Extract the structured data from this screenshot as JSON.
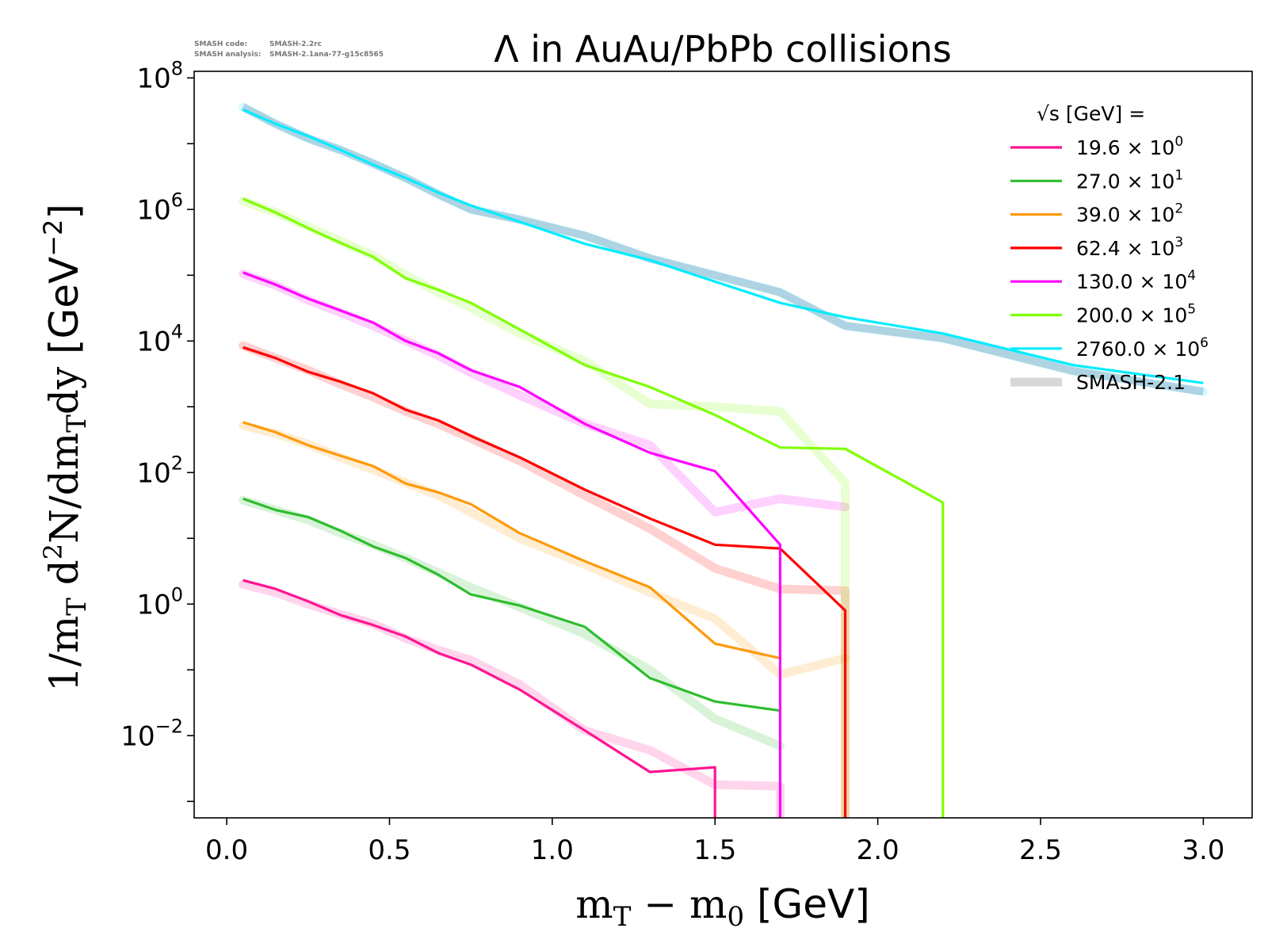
{
  "meta": {
    "line1_label": "SMASH code:",
    "line1_value": "SMASH-2.2rc",
    "line2_label": "SMASH analysis:",
    "line2_value": "SMASH-2.1ana-77-g15c8565"
  },
  "chart_data": {
    "type": "line",
    "title": "Λ in AuAu/PbPb collisions",
    "xlabel": "m_T − m_0 [GeV]",
    "ylabel": "1/m_T d²N/dm_T dy [GeV⁻²]",
    "xlim": [
      -0.1,
      3.15
    ],
    "ylim_log10": [
      -3.25,
      8.1
    ],
    "y_scale": "log",
    "grid": false,
    "legend_position": "top-right",
    "legend_title": "√s  [GeV] =",
    "x_ticks": [
      "0.0",
      "0.5",
      "1.0",
      "1.5",
      "2.0",
      "2.5",
      "3.0"
    ],
    "y_ticks": [
      {
        "base": "10",
        "exp": "−2"
      },
      {
        "base": "10",
        "exp": "0"
      },
      {
        "base": "10",
        "exp": "2"
      },
      {
        "base": "10",
        "exp": "4"
      },
      {
        "base": "10",
        "exp": "6"
      },
      {
        "base": "10",
        "exp": "8"
      }
    ],
    "reference_label": "SMASH-2.1",
    "series": [
      {
        "name": "19.6 × 10",
        "exponent": "0",
        "color": "#ff1493",
        "x": [
          0.05,
          0.15,
          0.25,
          0.35,
          0.45,
          0.55,
          0.65,
          0.75,
          0.9,
          1.1,
          1.3,
          1.5,
          1.5
        ],
        "y": [
          2.3,
          1.7,
          1.1,
          0.68,
          0.48,
          0.32,
          0.18,
          0.12,
          0.05,
          0.012,
          0.0028,
          0.0033,
          0.0001
        ],
        "ref_x": [
          0.05,
          0.15,
          0.25,
          0.35,
          0.45,
          0.55,
          0.65,
          0.75,
          0.9,
          1.1,
          1.3,
          1.5,
          1.7,
          1.7
        ],
        "ref_y": [
          2.0,
          1.5,
          1.0,
          0.7,
          0.5,
          0.3,
          0.2,
          0.14,
          0.06,
          0.012,
          0.006,
          0.0018,
          0.0017,
          0.0001
        ]
      },
      {
        "name": "27.0 × 10",
        "exponent": "1",
        "color": "#2ebd2e",
        "x": [
          0.05,
          0.15,
          0.25,
          0.35,
          0.45,
          0.55,
          0.65,
          0.75,
          0.9,
          1.1,
          1.3,
          1.5,
          1.7
        ],
        "y": [
          40,
          27,
          21,
          13,
          7.5,
          5,
          2.8,
          1.4,
          0.95,
          0.45,
          0.075,
          0.033,
          0.024
        ],
        "ref_x": [
          0.05,
          0.15,
          0.25,
          0.35,
          0.45,
          0.55,
          0.65,
          0.75,
          0.9,
          1.1,
          1.3,
          1.5,
          1.7
        ],
        "ref_y": [
          38,
          27,
          19,
          12,
          8,
          5,
          3,
          1.8,
          0.9,
          0.35,
          0.1,
          0.018,
          0.007
        ]
      },
      {
        "name": "39.0 × 10",
        "exponent": "2",
        "color": "#ff9a0a",
        "x": [
          0.05,
          0.15,
          0.25,
          0.35,
          0.45,
          0.55,
          0.65,
          0.75,
          0.9,
          1.1,
          1.3,
          1.5,
          1.7
        ],
        "y": [
          580,
          410,
          260,
          180,
          125,
          68,
          50,
          33,
          12,
          4.5,
          1.8,
          0.25,
          0.15
        ],
        "ref_x": [
          0.05,
          0.15,
          0.25,
          0.35,
          0.45,
          0.55,
          0.65,
          0.75,
          0.9,
          1.1,
          1.3,
          1.5,
          1.7,
          1.9
        ],
        "ref_y": [
          520,
          390,
          270,
          170,
          110,
          70,
          45,
          25,
          10,
          4,
          1.5,
          0.6,
          0.085,
          0.15
        ]
      },
      {
        "name": "62.4 × 10",
        "exponent": "3",
        "color": "#ff0000",
        "x": [
          0.05,
          0.15,
          0.25,
          0.35,
          0.45,
          0.55,
          0.65,
          0.75,
          0.9,
          1.1,
          1.3,
          1.5,
          1.7,
          1.9,
          1.9
        ],
        "y": [
          8000,
          5500,
          3400,
          2400,
          1600,
          900,
          620,
          360,
          170,
          55,
          20,
          8,
          7,
          0.8,
          0.0001
        ],
        "ref_x": [
          0.05,
          0.15,
          0.25,
          0.35,
          0.45,
          0.55,
          0.65,
          0.75,
          0.9,
          1.1,
          1.3,
          1.5,
          1.7,
          1.9,
          1.9
        ],
        "ref_y": [
          8500,
          5500,
          3600,
          2200,
          1400,
          850,
          550,
          330,
          150,
          45,
          14,
          3.5,
          1.7,
          1.6,
          0.0001
        ]
      },
      {
        "name": "130.0 × 10",
        "exponent": "4",
        "color": "#ff00ff",
        "x": [
          0.05,
          0.15,
          0.25,
          0.35,
          0.45,
          0.55,
          0.65,
          0.75,
          0.9,
          1.1,
          1.3,
          1.5,
          1.7,
          1.7
        ],
        "y": [
          110000,
          72000,
          44000,
          29000,
          19000,
          10000,
          6500,
          3600,
          2000,
          550,
          200,
          105,
          8,
          0.0001
        ],
        "ref_x": [
          0.05,
          0.15,
          0.25,
          0.35,
          0.45,
          0.55,
          0.65,
          0.75,
          0.9,
          1.1,
          1.3,
          1.5,
          1.7,
          1.9
        ],
        "ref_y": [
          105000,
          70000,
          42000,
          27000,
          17000,
          10000,
          6000,
          3300,
          1500,
          550,
          260,
          25,
          40,
          30
        ]
      },
      {
        "name": "200.0 × 10",
        "exponent": "5",
        "color": "#7fff00",
        "x": [
          0.05,
          0.15,
          0.25,
          0.35,
          0.45,
          0.55,
          0.65,
          0.75,
          0.9,
          1.1,
          1.3,
          1.5,
          1.7,
          1.9,
          2.2,
          2.2
        ],
        "y": [
          1450000,
          900000,
          520000,
          310000,
          190000,
          90000,
          60000,
          38000,
          15000,
          4300,
          2000,
          750,
          240,
          230,
          35,
          0.0001
        ],
        "ref_x": [
          0.05,
          0.15,
          0.25,
          0.35,
          0.45,
          0.55,
          0.65,
          0.75,
          0.9,
          1.1,
          1.3,
          1.5,
          1.7,
          1.9,
          1.9
        ],
        "ref_y": [
          1350000,
          900000,
          550000,
          330000,
          200000,
          100000,
          55000,
          32000,
          13000,
          5000,
          1100,
          1000,
          850,
          70,
          0.0001
        ]
      },
      {
        "name": "2760.0 × 10",
        "exponent": "6",
        "color": "#00ecff",
        "x": [
          0.05,
          0.15,
          0.25,
          0.35,
          0.45,
          0.55,
          0.65,
          0.75,
          0.9,
          1.1,
          1.3,
          1.5,
          1.7,
          1.9,
          2.2,
          2.6,
          3.0
        ],
        "y": [
          33000000,
          20000000,
          13000000,
          8000000,
          4800000,
          3000000,
          1800000,
          1150000,
          650000,
          300000,
          170000,
          80000,
          38000,
          23000,
          13000,
          4300,
          2300
        ],
        "ref_x": [
          0.05,
          0.15,
          0.25,
          0.35,
          0.45,
          0.55,
          0.65,
          0.75,
          0.9,
          1.1,
          1.3,
          1.5,
          1.7,
          1.9,
          2.2,
          2.6,
          3.0
        ],
        "ref_y": [
          36000000,
          20000000,
          12000000,
          8000000,
          5000000,
          3000000,
          1700000,
          1000000,
          700000,
          400000,
          180000,
          100000,
          55000,
          17000,
          11000,
          3500,
          1700
        ]
      }
    ]
  }
}
